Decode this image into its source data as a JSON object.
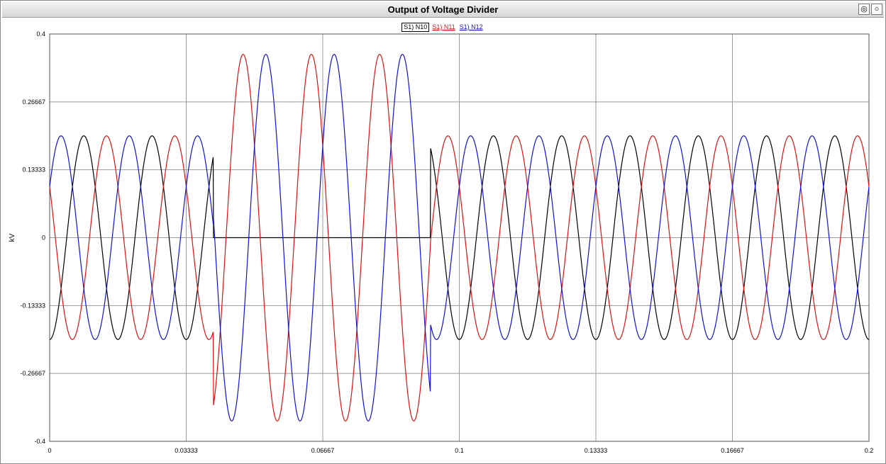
{
  "window": {
    "title": "Output of Voltage Divider",
    "buttons": [
      {
        "name": "pin-icon",
        "glyph": "◎"
      },
      {
        "name": "options-icon",
        "glyph": "○"
      }
    ]
  },
  "chart_data": {
    "type": "line",
    "title": "Output of Voltage Divider",
    "xlabel": "",
    "ylabel": "kV",
    "xlim": [
      0,
      0.2
    ],
    "ylim": [
      -0.4,
      0.4
    ],
    "xticks": [
      "0",
      "0.03333",
      "0.06667",
      "0.1",
      "0.13333",
      "0.16667",
      "0.2"
    ],
    "yticks": [
      "0.4",
      "0.26667",
      "0.13333",
      "0",
      "-0.13333",
      "-0.26667",
      "-0.4"
    ],
    "grid": true,
    "legend_position": "top-center",
    "fault_interval": [
      0.04,
      0.093
    ],
    "series": [
      {
        "name": "S1) N10",
        "color": "#000000",
        "normal_amplitude": 0.2,
        "phase_deg": -90,
        "frequency_hz": 60,
        "fault_amplitude": 0.0
      },
      {
        "name": "S1) N11",
        "color": "#e01010",
        "normal_amplitude": 0.2,
        "phase_deg": -210,
        "frequency_hz": 60,
        "fault_amplitude": 0.36
      },
      {
        "name": "S1) N12",
        "color": "#1010e0",
        "normal_amplitude": 0.2,
        "phase_deg": 30,
        "frequency_hz": 60,
        "fault_amplitude": 0.36
      }
    ]
  }
}
